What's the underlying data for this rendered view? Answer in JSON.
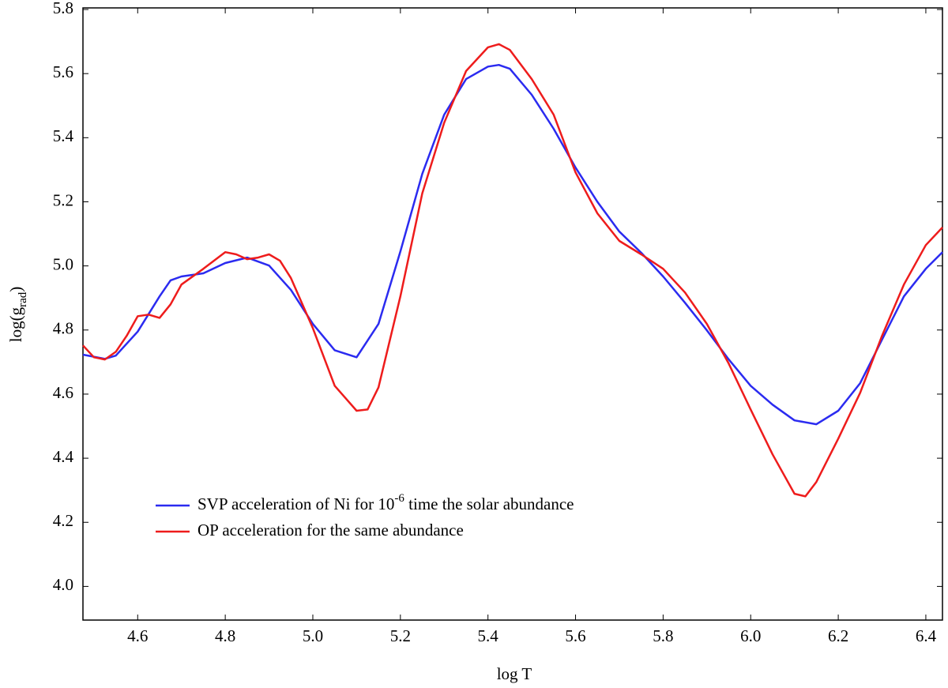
{
  "chart_data": {
    "type": "line",
    "xlabel": "log T",
    "ylabel": [
      {
        "text": "log(g"
      },
      {
        "text": "rad",
        "sub": true
      },
      {
        "text": ")"
      }
    ],
    "xlim": [
      4.475,
      6.438
    ],
    "ylim": [
      3.895,
      5.805
    ],
    "xticks": [
      4.6,
      4.8,
      {
        "value": 5,
        "label": "5.0"
      },
      5.2,
      5.4,
      5.6,
      5.8,
      {
        "value": 6,
        "label": "6.0"
      },
      6.2,
      6.4
    ],
    "yticks": [
      {
        "value": 4,
        "label": "4.0"
      },
      4.2,
      4.4,
      4.6,
      4.8,
      {
        "value": 5,
        "label": "5.0"
      },
      5.2,
      5.4,
      5.6,
      5.8
    ],
    "series": [
      {
        "name": [
          {
            "text": "SVP  acceleration of Ni for 10"
          },
          {
            "text": "-6",
            "sup": true
          },
          {
            "text": " time the solar abundance"
          }
        ],
        "color": "#2b2bf0",
        "x": [
          4.475,
          4.525,
          4.55,
          4.6,
          4.65,
          4.675,
          4.7,
          4.75,
          4.8,
          4.85,
          4.9,
          4.95,
          5.0,
          5.05,
          5.1,
          5.15,
          5.2,
          5.25,
          5.3,
          5.35,
          5.4,
          5.425,
          5.45,
          5.5,
          5.55,
          5.6,
          5.65,
          5.7,
          5.75,
          5.8,
          5.85,
          5.9,
          5.95,
          6.0,
          6.05,
          6.1,
          6.15,
          6.2,
          6.25,
          6.3,
          6.35,
          6.4,
          6.438
        ],
        "values": [
          4.723,
          4.71,
          4.72,
          4.795,
          4.905,
          4.955,
          4.967,
          4.977,
          5.009,
          5.026,
          5.001,
          4.925,
          4.819,
          4.737,
          4.715,
          4.819,
          5.045,
          5.287,
          5.472,
          5.583,
          5.622,
          5.627,
          5.615,
          5.534,
          5.428,
          5.307,
          5.2,
          5.107,
          5.041,
          4.967,
          4.885,
          4.799,
          4.708,
          4.626,
          4.567,
          4.518,
          4.506,
          4.548,
          4.634,
          4.77,
          4.905,
          4.991,
          5.043
        ]
      },
      {
        "name": [
          {
            "text": "OP acceleration for the same abundance"
          }
        ],
        "color": "#ee1c1c",
        "x": [
          4.475,
          4.5,
          4.525,
          4.55,
          4.575,
          4.6,
          4.625,
          4.65,
          4.675,
          4.7,
          4.75,
          4.8,
          4.825,
          4.85,
          4.875,
          4.9,
          4.925,
          4.95,
          5.0,
          5.05,
          5.1,
          5.125,
          5.15,
          5.2,
          5.25,
          5.3,
          5.35,
          5.4,
          5.425,
          5.45,
          5.5,
          5.55,
          5.6,
          5.65,
          5.7,
          5.75,
          5.8,
          5.85,
          5.9,
          5.95,
          6.0,
          6.05,
          6.1,
          6.125,
          6.15,
          6.2,
          6.25,
          6.3,
          6.35,
          6.4,
          6.438
        ],
        "values": [
          4.752,
          4.715,
          4.708,
          4.732,
          4.782,
          4.843,
          4.848,
          4.838,
          4.88,
          4.942,
          4.991,
          5.043,
          5.036,
          5.021,
          5.026,
          5.036,
          5.016,
          4.962,
          4.806,
          4.626,
          4.548,
          4.552,
          4.621,
          4.905,
          5.226,
          5.447,
          5.608,
          5.682,
          5.692,
          5.674,
          5.583,
          5.472,
          5.292,
          5.164,
          5.078,
          5.036,
          4.991,
          4.917,
          4.819,
          4.695,
          4.552,
          4.412,
          4.289,
          4.281,
          4.326,
          4.461,
          4.604,
          4.782,
          4.942,
          5.065,
          5.12
        ]
      }
    ]
  }
}
